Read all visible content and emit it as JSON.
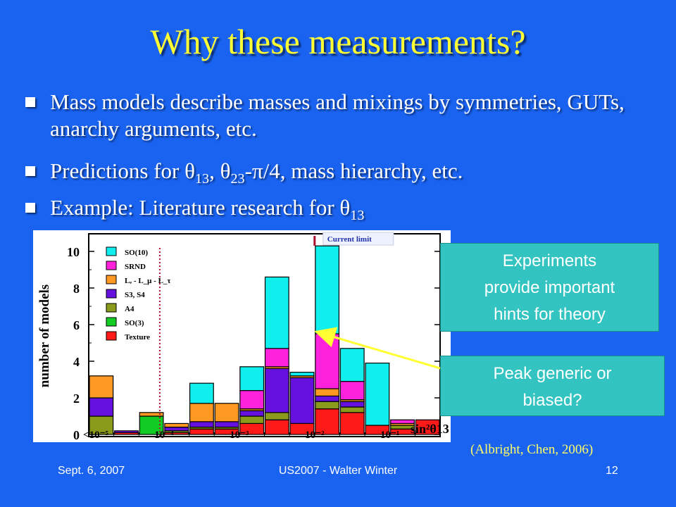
{
  "slide": {
    "title": "Why these measurements?",
    "bullets": [
      {
        "parts": [
          {
            "t": "Mass models describe masses and mixings by symmetries, GUTs, anarchy arguments, etc."
          }
        ]
      },
      {
        "parts": [
          {
            "t": "Predictions for θ"
          },
          {
            "sub": "13"
          },
          {
            "t": ", θ"
          },
          {
            "sub": "23"
          },
          {
            "t": "-π/4, mass hierarchy, etc."
          }
        ]
      },
      {
        "parts": [
          {
            "t": "Example: Literature research for θ"
          },
          {
            "sub": "13"
          }
        ]
      }
    ],
    "callout_top": [
      "Experiments",
      "provide important",
      "hints for theory"
    ],
    "callout_bottom": [
      "Peak generic or",
      "biased?"
    ],
    "citation": "(Albright, Chen, 2006)",
    "footer": {
      "date": "Sept. 6, 2007",
      "center": "US2007 - Walter Winter",
      "page": "12"
    }
  },
  "chart_data": {
    "type": "bar",
    "subtype": "stacked-histogram",
    "ylabel": "number of models",
    "xlabel": "sin²θ13",
    "ylim": [
      0,
      10.5
    ],
    "y_ticks": [
      0,
      2,
      4,
      6,
      8,
      10
    ],
    "x_tick_labels": [
      "<10⁻⁵",
      "10⁻⁴",
      "10⁻³",
      "10⁻²",
      "10⁻¹"
    ],
    "current_limit_label": "Current limit",
    "current_limit_bin": 9,
    "dotted_line_after_bin": 3,
    "legend_position": "top-left",
    "bins": 14,
    "series": [
      {
        "name": "Texture",
        "color": "#ff1a1a",
        "values": [
          0,
          0.1,
          0,
          0.1,
          0.3,
          0.3,
          0.6,
          0.8,
          0.6,
          1.4,
          1.2,
          0.5,
          0.3,
          0.8
        ]
      },
      {
        "name": "SO(3)",
        "color": "#11cc22",
        "values": [
          0,
          0,
          1,
          0,
          0,
          0,
          0,
          0,
          0,
          0,
          0,
          0,
          0,
          0
        ]
      },
      {
        "name": "A4",
        "color": "#8a9a1a",
        "values": [
          1,
          0,
          0,
          0.1,
          0.1,
          0.1,
          0.4,
          0.4,
          0,
          0.4,
          0.3,
          0,
          0.2,
          0
        ]
      },
      {
        "name": "S3, S4",
        "color": "#6611dd",
        "values": [
          1,
          0.1,
          0,
          0.2,
          0.3,
          0.3,
          0.3,
          2.4,
          2.5,
          0.3,
          0.3,
          0,
          0,
          0
        ]
      },
      {
        "name": "Lₑ - L_μ - L_τ",
        "color": "#ff9922",
        "values": [
          1.2,
          0,
          0.2,
          0.2,
          1,
          1,
          0.1,
          0.1,
          0.1,
          0.4,
          0.1,
          0,
          0.1,
          0
        ]
      },
      {
        "name": "SRND",
        "color": "#ff22dd",
        "values": [
          0,
          0,
          0,
          0,
          0,
          0,
          1,
          1,
          0,
          3,
          1,
          0,
          0.2,
          0
        ]
      },
      {
        "name": "SO(10)",
        "color": "#11eeee",
        "values": [
          0,
          0,
          0,
          0,
          1.1,
          0,
          1.3,
          3.9,
          0.2,
          4.8,
          1.8,
          3.4,
          0,
          0
        ]
      }
    ]
  },
  "colors": {
    "background": "#1a63f0",
    "title": "#ffff33",
    "callout": "#33c3c0",
    "arrow": "#ffff33",
    "citation": "#ffff66"
  }
}
